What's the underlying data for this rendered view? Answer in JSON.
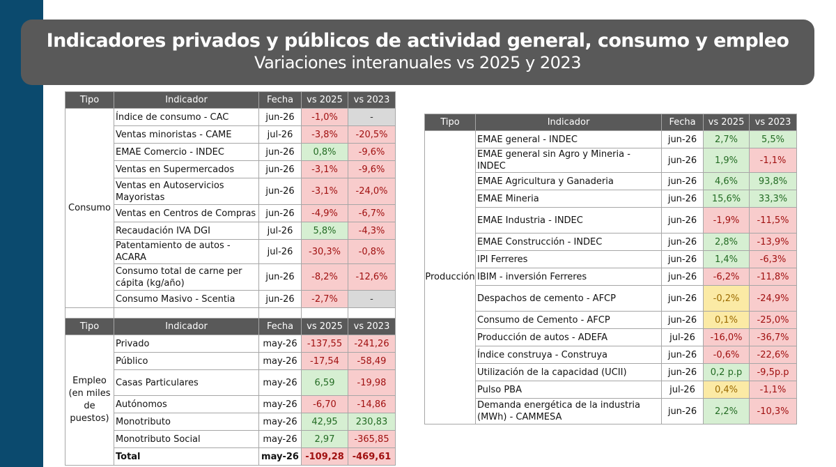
{
  "header": {
    "title": "Indicadores privados y públicos de actividad general, consumo y empleo",
    "subtitle": "Variaciones interanuales vs 2025 y 2023"
  },
  "columns": {
    "tipo": "Tipo",
    "indicador": "Indicador",
    "fecha": "Fecha",
    "vs2025": "vs 2025",
    "vs2023": "vs 2023"
  },
  "consumo": {
    "tipo": "Consumo",
    "rows": [
      {
        "indicador": "Índice de consumo - CAC",
        "fecha": "jun-26",
        "v2025": "-1,0%",
        "c2025": "neg",
        "v2023": "-",
        "c2023": "emp"
      },
      {
        "indicador": "Ventas minoristas - CAME",
        "fecha": "jul-26",
        "v2025": "-3,8%",
        "c2025": "neg",
        "v2023": "-20,5%",
        "c2023": "neg"
      },
      {
        "indicador": "EMAE Comercio - INDEC",
        "fecha": "jun-26",
        "v2025": "0,8%",
        "c2025": "pos",
        "v2023": "-9,6%",
        "c2023": "neg"
      },
      {
        "indicador": "Ventas en Supermercados",
        "fecha": "jun-26",
        "v2025": "-3,1%",
        "c2025": "neg",
        "v2023": "-9,6%",
        "c2023": "neg"
      },
      {
        "indicador": "Ventas en Autoservicios Mayoristas",
        "fecha": "jun-26",
        "v2025": "-3,1%",
        "c2025": "neg",
        "v2023": "-24,0%",
        "c2023": "neg"
      },
      {
        "indicador": "Ventas en Centros de Compras",
        "fecha": "jun-26",
        "v2025": "-4,9%",
        "c2025": "neg",
        "v2023": "-6,7%",
        "c2023": "neg"
      },
      {
        "indicador": "Recaudación IVA DGI",
        "fecha": "jul-26",
        "v2025": "5,8%",
        "c2025": "pos",
        "v2023": "-4,3%",
        "c2023": "neg"
      },
      {
        "indicador": "Patentamiento de autos - ACARA",
        "fecha": "jul-26",
        "v2025": "-30,3%",
        "c2025": "neg",
        "v2023": "-0,8%",
        "c2023": "neg"
      },
      {
        "indicador": "Consumo total de carne per cápita (kg/año)",
        "fecha": "jun-26",
        "v2025": "-8,2%",
        "c2025": "neg",
        "v2023": "-12,6%",
        "c2023": "neg"
      },
      {
        "indicador": "Consumo Masivo - Scentia",
        "fecha": "jun-26",
        "v2025": "-2,7%",
        "c2025": "neg",
        "v2023": "-",
        "c2023": "emp"
      }
    ]
  },
  "empleo": {
    "tipo": "Empleo (en miles de puestos)",
    "rows": [
      {
        "indicador": "Privado",
        "fecha": "may-26",
        "v2025": "-137,55",
        "c2025": "neg",
        "v2023": "-241,26",
        "c2023": "neg"
      },
      {
        "indicador": "Público",
        "fecha": "may-26",
        "v2025": "-17,54",
        "c2025": "neg",
        "v2023": "-58,49",
        "c2023": "neg"
      },
      {
        "indicador": "Casas Particulares",
        "fecha": "may-26",
        "v2025": "6,59",
        "c2025": "pos",
        "v2023": "-19,98",
        "c2023": "neg"
      },
      {
        "indicador": "Autónomos",
        "fecha": "may-26",
        "v2025": "-6,70",
        "c2025": "neg",
        "v2023": "-14,86",
        "c2023": "neg"
      },
      {
        "indicador": "Monotributo",
        "fecha": "may-26",
        "v2025": "42,95",
        "c2025": "pos",
        "v2023": "230,83",
        "c2023": "pos"
      },
      {
        "indicador": "Monotributo Social",
        "fecha": "may-26",
        "v2025": "2,97",
        "c2025": "pos",
        "v2023": "-365,85",
        "c2023": "neg"
      }
    ],
    "total": {
      "indicador": "Total",
      "fecha": "may-26",
      "v2025": "-109,28",
      "c2025": "neg",
      "v2023": "-469,61",
      "c2023": "neg"
    }
  },
  "produccion": {
    "tipo": "Producción",
    "rows": [
      {
        "indicador": "EMAE general - INDEC",
        "fecha": "jun-26",
        "v2025": "2,7%",
        "c2025": "pos",
        "v2023": "5,5%",
        "c2023": "pos"
      },
      {
        "indicador": "EMAE general sin Agro y Mineria - INDEC",
        "fecha": "jun-26",
        "v2025": "1,9%",
        "c2025": "pos",
        "v2023": "-1,1%",
        "c2023": "neg"
      },
      {
        "indicador": "EMAE Agricultura y Ganaderia",
        "fecha": "jun-26",
        "v2025": "4,6%",
        "c2025": "pos",
        "v2023": "93,8%",
        "c2023": "pos"
      },
      {
        "indicador": "EMAE Mineria",
        "fecha": "jun-26",
        "v2025": "15,6%",
        "c2025": "pos",
        "v2023": "33,3%",
        "c2023": "pos"
      },
      {
        "indicador": "EMAE Industria - INDEC",
        "fecha": "jun-26",
        "v2025": "-1,9%",
        "c2025": "neg",
        "v2023": "-11,5%",
        "c2023": "neg"
      },
      {
        "indicador": "EMAE Construcción - INDEC",
        "fecha": "jun-26",
        "v2025": "2,8%",
        "c2025": "pos",
        "v2023": "-13,9%",
        "c2023": "neg"
      },
      {
        "indicador": "IPI Ferreres",
        "fecha": "jun-26",
        "v2025": "1,4%",
        "c2025": "pos",
        "v2023": "-6,3%",
        "c2023": "neg"
      },
      {
        "indicador": "IBIM - inversión Ferreres",
        "fecha": "jun-26",
        "v2025": "-6,2%",
        "c2025": "neg",
        "v2023": "-11,8%",
        "c2023": "neg"
      },
      {
        "indicador": "Despachos de cemento - AFCP",
        "fecha": "jun-26",
        "v2025": "-0,2%",
        "c2025": "neu",
        "v2023": "-24,9%",
        "c2023": "neg"
      },
      {
        "indicador": "Consumo de Cemento - AFCP",
        "fecha": "jun-26",
        "v2025": "0,1%",
        "c2025": "neu",
        "v2023": "-25,0%",
        "c2023": "neg"
      },
      {
        "indicador": "Producción de autos - ADEFA",
        "fecha": "jul-26",
        "v2025": "-16,0%",
        "c2025": "neg",
        "v2023": "-36,7%",
        "c2023": "neg"
      },
      {
        "indicador": "Índice construya - Construya",
        "fecha": "jun-26",
        "v2025": "-0,6%",
        "c2025": "neg",
        "v2023": "-22,6%",
        "c2023": "neg"
      },
      {
        "indicador": "Utilización de la capacidad (UCII)",
        "fecha": "jun-26",
        "v2025": "0,2 p.p",
        "c2025": "pos",
        "v2023": "-9,5p.p",
        "c2023": "neg"
      },
      {
        "indicador": "Pulso PBA",
        "fecha": "jul-26",
        "v2025": "0,4%",
        "c2025": "neu",
        "v2023": "-1,1%",
        "c2023": "neg"
      },
      {
        "indicador": "Demanda energética de la industria (MWh) - CAMMESA",
        "fecha": "jun-26",
        "v2025": "2,2%",
        "c2025": "pos",
        "v2023": "-10,3%",
        "c2023": "neg"
      }
    ]
  }
}
